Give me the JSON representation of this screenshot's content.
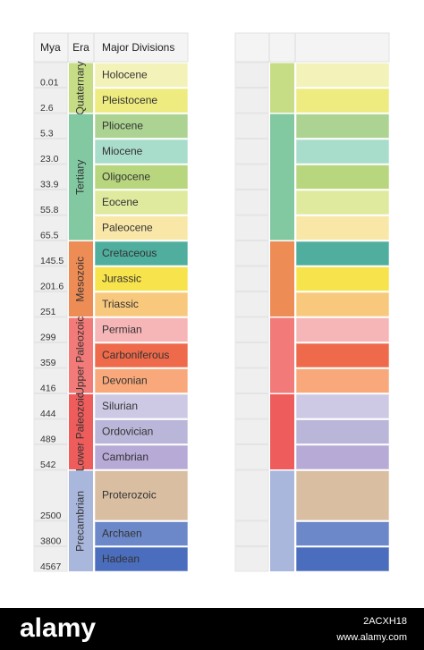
{
  "header": {
    "mya": "Mya",
    "era": "Era",
    "divisions": "Major Divisions"
  },
  "eras": [
    {
      "name": "Quaternary",
      "color": "#c6dd86",
      "divisions": [
        {
          "name": "Holocene",
          "mya": "0.01",
          "color": "#f3f2b8"
        },
        {
          "name": "Pleistocene",
          "mya": "2.6",
          "color": "#eeeb80"
        }
      ]
    },
    {
      "name": "Tertiary",
      "color": "#82c9a2",
      "divisions": [
        {
          "name": "Pliocene",
          "mya": "5.3",
          "color": "#acd392"
        },
        {
          "name": "Miocene",
          "mya": "23.0",
          "color": "#a8dccb"
        },
        {
          "name": "Oligocene",
          "mya": "33.9",
          "color": "#b7d67e"
        },
        {
          "name": "Eocene",
          "mya": "55.8",
          "color": "#dfea9e"
        },
        {
          "name": "Paleocene",
          "mya": "65.5",
          "color": "#f9e7a8"
        }
      ]
    },
    {
      "name": "Mesozoic",
      "color": "#ee8c56",
      "divisions": [
        {
          "name": "Cretaceous",
          "mya": "145.5",
          "color": "#4fae9e"
        },
        {
          "name": "Jurassic",
          "mya": "201.6",
          "color": "#f7e34b"
        },
        {
          "name": "Triassic",
          "mya": "251",
          "color": "#f8c87c"
        }
      ]
    },
    {
      "name": "Upper Paleozoic",
      "color": "#f27a78",
      "divisions": [
        {
          "name": "Permian",
          "mya": "299",
          "color": "#f6b5b6"
        },
        {
          "name": "Carboniferous",
          "mya": "359",
          "color": "#ee6a4a"
        },
        {
          "name": "Devonian",
          "mya": "416",
          "color": "#f8a87a"
        }
      ]
    },
    {
      "name": "Lower Paleozoic",
      "color": "#ee5c5c",
      "divisions": [
        {
          "name": "Silurian",
          "mya": "444",
          "color": "#cdc9e4"
        },
        {
          "name": "Ordovician",
          "mya": "489",
          "color": "#bab6d9"
        },
        {
          "name": "Cambrian",
          "mya": "542",
          "color": "#b7aad6"
        }
      ]
    },
    {
      "name": "Precambrian",
      "color": "#a9b7dd",
      "divisions": [
        {
          "name": "Proterozoic",
          "mya": "2500",
          "color": "#d9bea2"
        },
        {
          "name": "Archaen",
          "mya": "3800",
          "color": "#6c88c9"
        },
        {
          "name": "Hadean",
          "mya": "4567",
          "color": "#4b6dbd"
        }
      ]
    }
  ],
  "footer": {
    "brand": "alamy",
    "image_id": "2ACXH18",
    "url": "www.alamy.com"
  }
}
